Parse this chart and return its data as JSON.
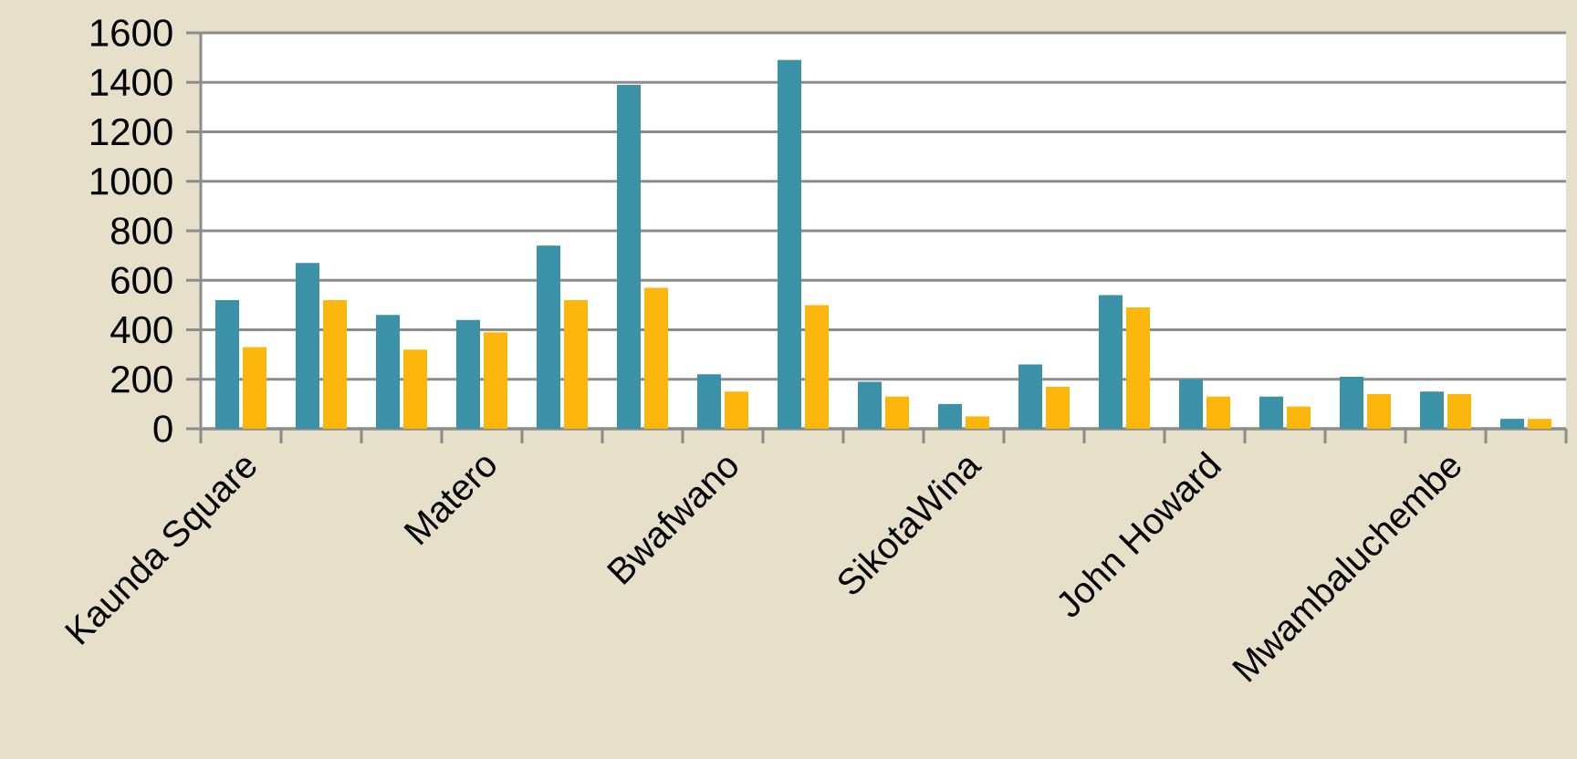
{
  "chart_data": {
    "type": "bar",
    "categories": [
      "Kaunda Square",
      null,
      null,
      "Matero",
      null,
      null,
      "Bwafwano",
      null,
      null,
      "SikotaWina",
      null,
      null,
      "John Howard",
      null,
      null,
      "Mwambaluchembe",
      null
    ],
    "series": [
      {
        "color": "#3a91a8",
        "values": [
          520,
          670,
          460,
          440,
          740,
          1390,
          220,
          1490,
          190,
          100,
          260,
          540,
          200,
          130,
          210,
          150,
          40
        ]
      },
      {
        "color": "#fdb60c",
        "values": [
          330,
          520,
          320,
          390,
          520,
          570,
          150,
          500,
          130,
          50,
          170,
          490,
          130,
          90,
          140,
          140,
          40
        ]
      }
    ],
    "ylim": [
      0,
      1600
    ],
    "yticks": [
      0,
      200,
      400,
      600,
      800,
      1000,
      1200,
      1400,
      1600
    ],
    "grid": "y"
  }
}
